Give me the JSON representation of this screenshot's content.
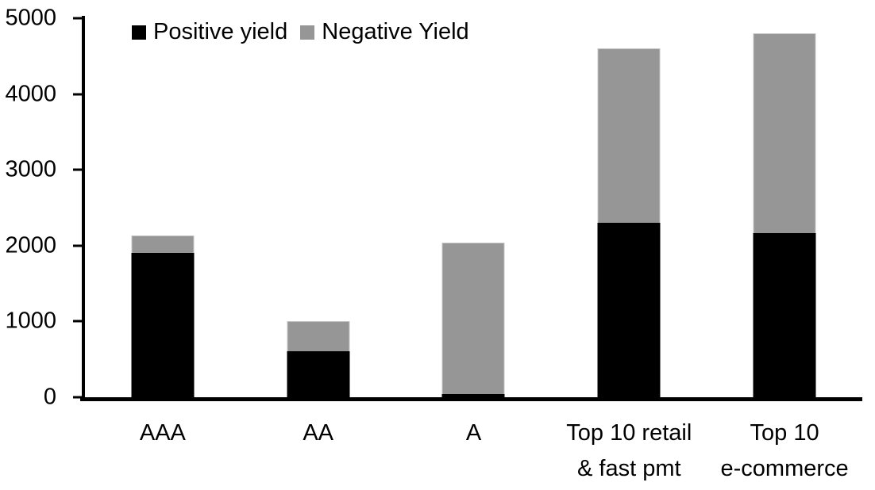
{
  "chart_data": {
    "type": "bar",
    "stacked": true,
    "title": "",
    "categories": [
      "AAA",
      "AA",
      "A",
      "Top 10 retail\n& fast pmt",
      "Top 10\ne-commerce"
    ],
    "series": [
      {
        "name": "Positive yield",
        "color": "#000000",
        "values": [
          1900,
          610,
          40,
          2300,
          2170
        ]
      },
      {
        "name": "Negative Yield",
        "color": "#969696",
        "values": [
          230,
          390,
          2000,
          2300,
          2630
        ]
      }
    ],
    "stacked_totals": [
      2130,
      1000,
      2040,
      4600,
      4800
    ],
    "xlabel": "",
    "ylabel": "",
    "ylim": [
      0,
      5000
    ],
    "yticks": [
      0,
      1000,
      2000,
      3000,
      4000,
      5000
    ],
    "grid": false,
    "legend_position": "top-left",
    "axis_color": "#000000",
    "background_color": "#ffffff"
  }
}
